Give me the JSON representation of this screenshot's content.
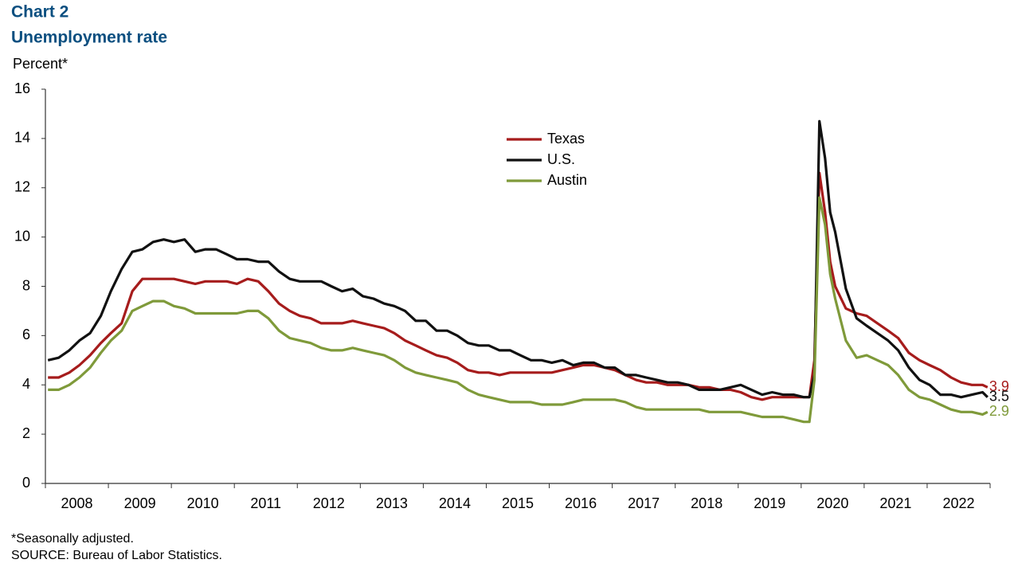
{
  "chart_data": {
    "type": "line",
    "title": "Chart 2",
    "subtitle": "Unemployment rate",
    "ylabel": "Percent*",
    "footnote": "*Seasonally adjusted.",
    "source": "SOURCE: Bureau of Labor Statistics.",
    "xlim": [
      2008,
      2023
    ],
    "xticks": [
      {
        "value": 2008.5,
        "label": "2008"
      },
      {
        "value": 2009.5,
        "label": "2009"
      },
      {
        "value": 2010.5,
        "label": "2010"
      },
      {
        "value": 2011.5,
        "label": "2011"
      },
      {
        "value": 2012.5,
        "label": "2012"
      },
      {
        "value": 2013.5,
        "label": "2013"
      },
      {
        "value": 2014.5,
        "label": "2014"
      },
      {
        "value": 2015.5,
        "label": "2015"
      },
      {
        "value": 2016.5,
        "label": "2016"
      },
      {
        "value": 2017.5,
        "label": "2017"
      },
      {
        "value": 2018.5,
        "label": "2018"
      },
      {
        "value": 2019.5,
        "label": "2019"
      },
      {
        "value": 2020.5,
        "label": "2020"
      },
      {
        "value": 2021.5,
        "label": "2021"
      },
      {
        "value": 2022.5,
        "label": "2022"
      }
    ],
    "ylim": [
      0,
      16
    ],
    "yticks": [
      0,
      2,
      4,
      6,
      8,
      10,
      12,
      14,
      16
    ],
    "grid": false,
    "legend": "top-center",
    "x": [
      2008.04,
      2008.21,
      2008.38,
      2008.54,
      2008.71,
      2008.88,
      2009.04,
      2009.21,
      2009.38,
      2009.54,
      2009.71,
      2009.88,
      2010.04,
      2010.21,
      2010.38,
      2010.54,
      2010.71,
      2010.88,
      2011.04,
      2011.21,
      2011.38,
      2011.54,
      2011.71,
      2011.88,
      2012.04,
      2012.21,
      2012.38,
      2012.54,
      2012.71,
      2012.88,
      2013.04,
      2013.21,
      2013.38,
      2013.54,
      2013.71,
      2013.88,
      2014.04,
      2014.21,
      2014.38,
      2014.54,
      2014.71,
      2014.88,
      2015.04,
      2015.21,
      2015.38,
      2015.54,
      2015.71,
      2015.88,
      2016.04,
      2016.21,
      2016.38,
      2016.54,
      2016.71,
      2016.88,
      2017.04,
      2017.21,
      2017.38,
      2017.54,
      2017.71,
      2017.88,
      2018.04,
      2018.21,
      2018.38,
      2018.54,
      2018.71,
      2018.88,
      2019.04,
      2019.21,
      2019.38,
      2019.54,
      2019.71,
      2019.88,
      2020.04,
      2020.13,
      2020.21,
      2020.29,
      2020.38,
      2020.46,
      2020.54,
      2020.71,
      2020.88,
      2021.04,
      2021.21,
      2021.38,
      2021.54,
      2021.71,
      2021.88,
      2022.04,
      2022.21,
      2022.38,
      2022.54,
      2022.71,
      2022.88,
      2022.96
    ],
    "series": [
      {
        "name": "Texas",
        "color": "#a61c1c",
        "values": [
          4.3,
          4.3,
          4.5,
          4.8,
          5.2,
          5.7,
          6.1,
          6.5,
          7.8,
          8.3,
          8.3,
          8.3,
          8.3,
          8.2,
          8.1,
          8.2,
          8.2,
          8.2,
          8.1,
          8.3,
          8.2,
          7.8,
          7.3,
          7.0,
          6.8,
          6.7,
          6.5,
          6.5,
          6.5,
          6.6,
          6.5,
          6.4,
          6.3,
          6.1,
          5.8,
          5.6,
          5.4,
          5.2,
          5.1,
          4.9,
          4.6,
          4.5,
          4.5,
          4.4,
          4.5,
          4.5,
          4.5,
          4.5,
          4.5,
          4.6,
          4.7,
          4.8,
          4.8,
          4.7,
          4.6,
          4.4,
          4.2,
          4.1,
          4.1,
          4.0,
          4.0,
          4.0,
          3.9,
          3.9,
          3.8,
          3.8,
          3.7,
          3.5,
          3.4,
          3.5,
          3.5,
          3.5,
          3.5,
          3.5,
          5.0,
          12.6,
          11.0,
          9.0,
          8.0,
          7.1,
          6.9,
          6.8,
          6.5,
          6.2,
          5.9,
          5.3,
          5.0,
          4.8,
          4.6,
          4.3,
          4.1,
          4.0,
          4.0,
          3.9
        ]
      },
      {
        "name": "U.S.",
        "color": "#111111",
        "values": [
          5.0,
          5.1,
          5.4,
          5.8,
          6.1,
          6.8,
          7.8,
          8.7,
          9.4,
          9.5,
          9.8,
          9.9,
          9.8,
          9.9,
          9.4,
          9.5,
          9.5,
          9.3,
          9.1,
          9.1,
          9.0,
          9.0,
          8.6,
          8.3,
          8.2,
          8.2,
          8.2,
          8.0,
          7.8,
          7.9,
          7.6,
          7.5,
          7.3,
          7.2,
          7.0,
          6.6,
          6.6,
          6.2,
          6.2,
          6.0,
          5.7,
          5.6,
          5.6,
          5.4,
          5.4,
          5.2,
          5.0,
          5.0,
          4.9,
          5.0,
          4.8,
          4.9,
          4.9,
          4.7,
          4.7,
          4.4,
          4.4,
          4.3,
          4.2,
          4.1,
          4.1,
          4.0,
          3.8,
          3.8,
          3.8,
          3.9,
          4.0,
          3.8,
          3.6,
          3.7,
          3.6,
          3.6,
          3.5,
          3.5,
          4.4,
          14.7,
          13.2,
          11.0,
          10.2,
          7.9,
          6.7,
          6.4,
          6.1,
          5.8,
          5.4,
          4.7,
          4.2,
          4.0,
          3.6,
          3.6,
          3.5,
          3.6,
          3.7,
          3.5
        ]
      },
      {
        "name": "Austin",
        "color": "#7f9a3a",
        "values": [
          3.8,
          3.8,
          4.0,
          4.3,
          4.7,
          5.3,
          5.8,
          6.2,
          7.0,
          7.2,
          7.4,
          7.4,
          7.2,
          7.1,
          6.9,
          6.9,
          6.9,
          6.9,
          6.9,
          7.0,
          7.0,
          6.7,
          6.2,
          5.9,
          5.8,
          5.7,
          5.5,
          5.4,
          5.4,
          5.5,
          5.4,
          5.3,
          5.2,
          5.0,
          4.7,
          4.5,
          4.4,
          4.3,
          4.2,
          4.1,
          3.8,
          3.6,
          3.5,
          3.4,
          3.3,
          3.3,
          3.3,
          3.2,
          3.2,
          3.2,
          3.3,
          3.4,
          3.4,
          3.4,
          3.4,
          3.3,
          3.1,
          3.0,
          3.0,
          3.0,
          3.0,
          3.0,
          3.0,
          2.9,
          2.9,
          2.9,
          2.9,
          2.8,
          2.7,
          2.7,
          2.7,
          2.6,
          2.5,
          2.5,
          4.2,
          11.6,
          10.5,
          8.5,
          7.5,
          5.8,
          5.1,
          5.2,
          5.0,
          4.8,
          4.4,
          3.8,
          3.5,
          3.4,
          3.2,
          3.0,
          2.9,
          2.9,
          2.8,
          2.9
        ]
      }
    ]
  }
}
